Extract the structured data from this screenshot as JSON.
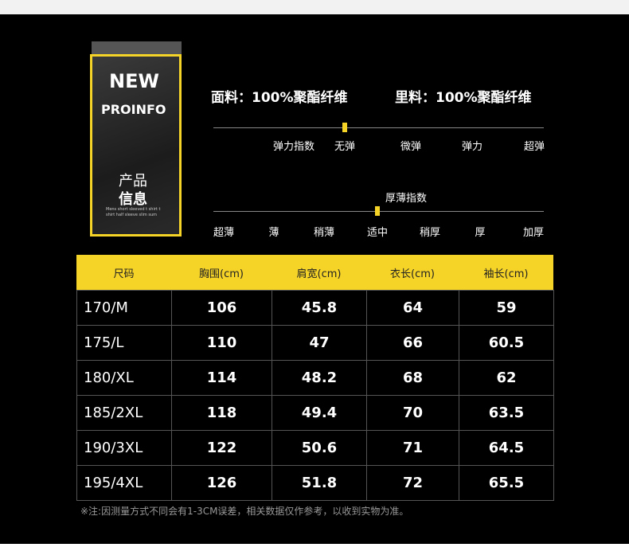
{
  "badge": {
    "top": "NEW",
    "middle": "PROINFO",
    "line1": "产品",
    "line2": "信息",
    "small": "Mens short sleeved t shirt t shirt half sleeve slim sum"
  },
  "fabric": {
    "outer": "面料：100%聚酯纤维",
    "lining": "里料：100%聚酯纤维"
  },
  "elasticity": {
    "title": "弹力指数",
    "levels": [
      "无弹",
      "微弹",
      "弹力",
      "超弹"
    ],
    "selected_index": 0
  },
  "thickness": {
    "title": "厚薄指数",
    "levels": [
      "超薄",
      "薄",
      "稍薄",
      "适中",
      "稍厚",
      "厚",
      "加厚"
    ],
    "selected_index": 3
  },
  "table": {
    "header": [
      "尺码",
      "胸围(cm)",
      "肩宽(cm)",
      "衣长(cm)",
      "袖长(cm)"
    ],
    "rows": [
      [
        "170/M",
        "106",
        "45.8",
        "64",
        "59"
      ],
      [
        "175/L",
        "110",
        "47",
        "66",
        "60.5"
      ],
      [
        "180/XL",
        "114",
        "48.2",
        "68",
        "62"
      ],
      [
        "185/2XL",
        "118",
        "49.4",
        "70",
        "63.5"
      ],
      [
        "190/3XL",
        "122",
        "50.6",
        "71",
        "64.5"
      ],
      [
        "195/4XL",
        "126",
        "51.8",
        "72",
        "65.5"
      ]
    ]
  },
  "note": "※注:因测量方式不同会有1-3CM误差，相关数据仅作参考，以收到实物为准。"
}
